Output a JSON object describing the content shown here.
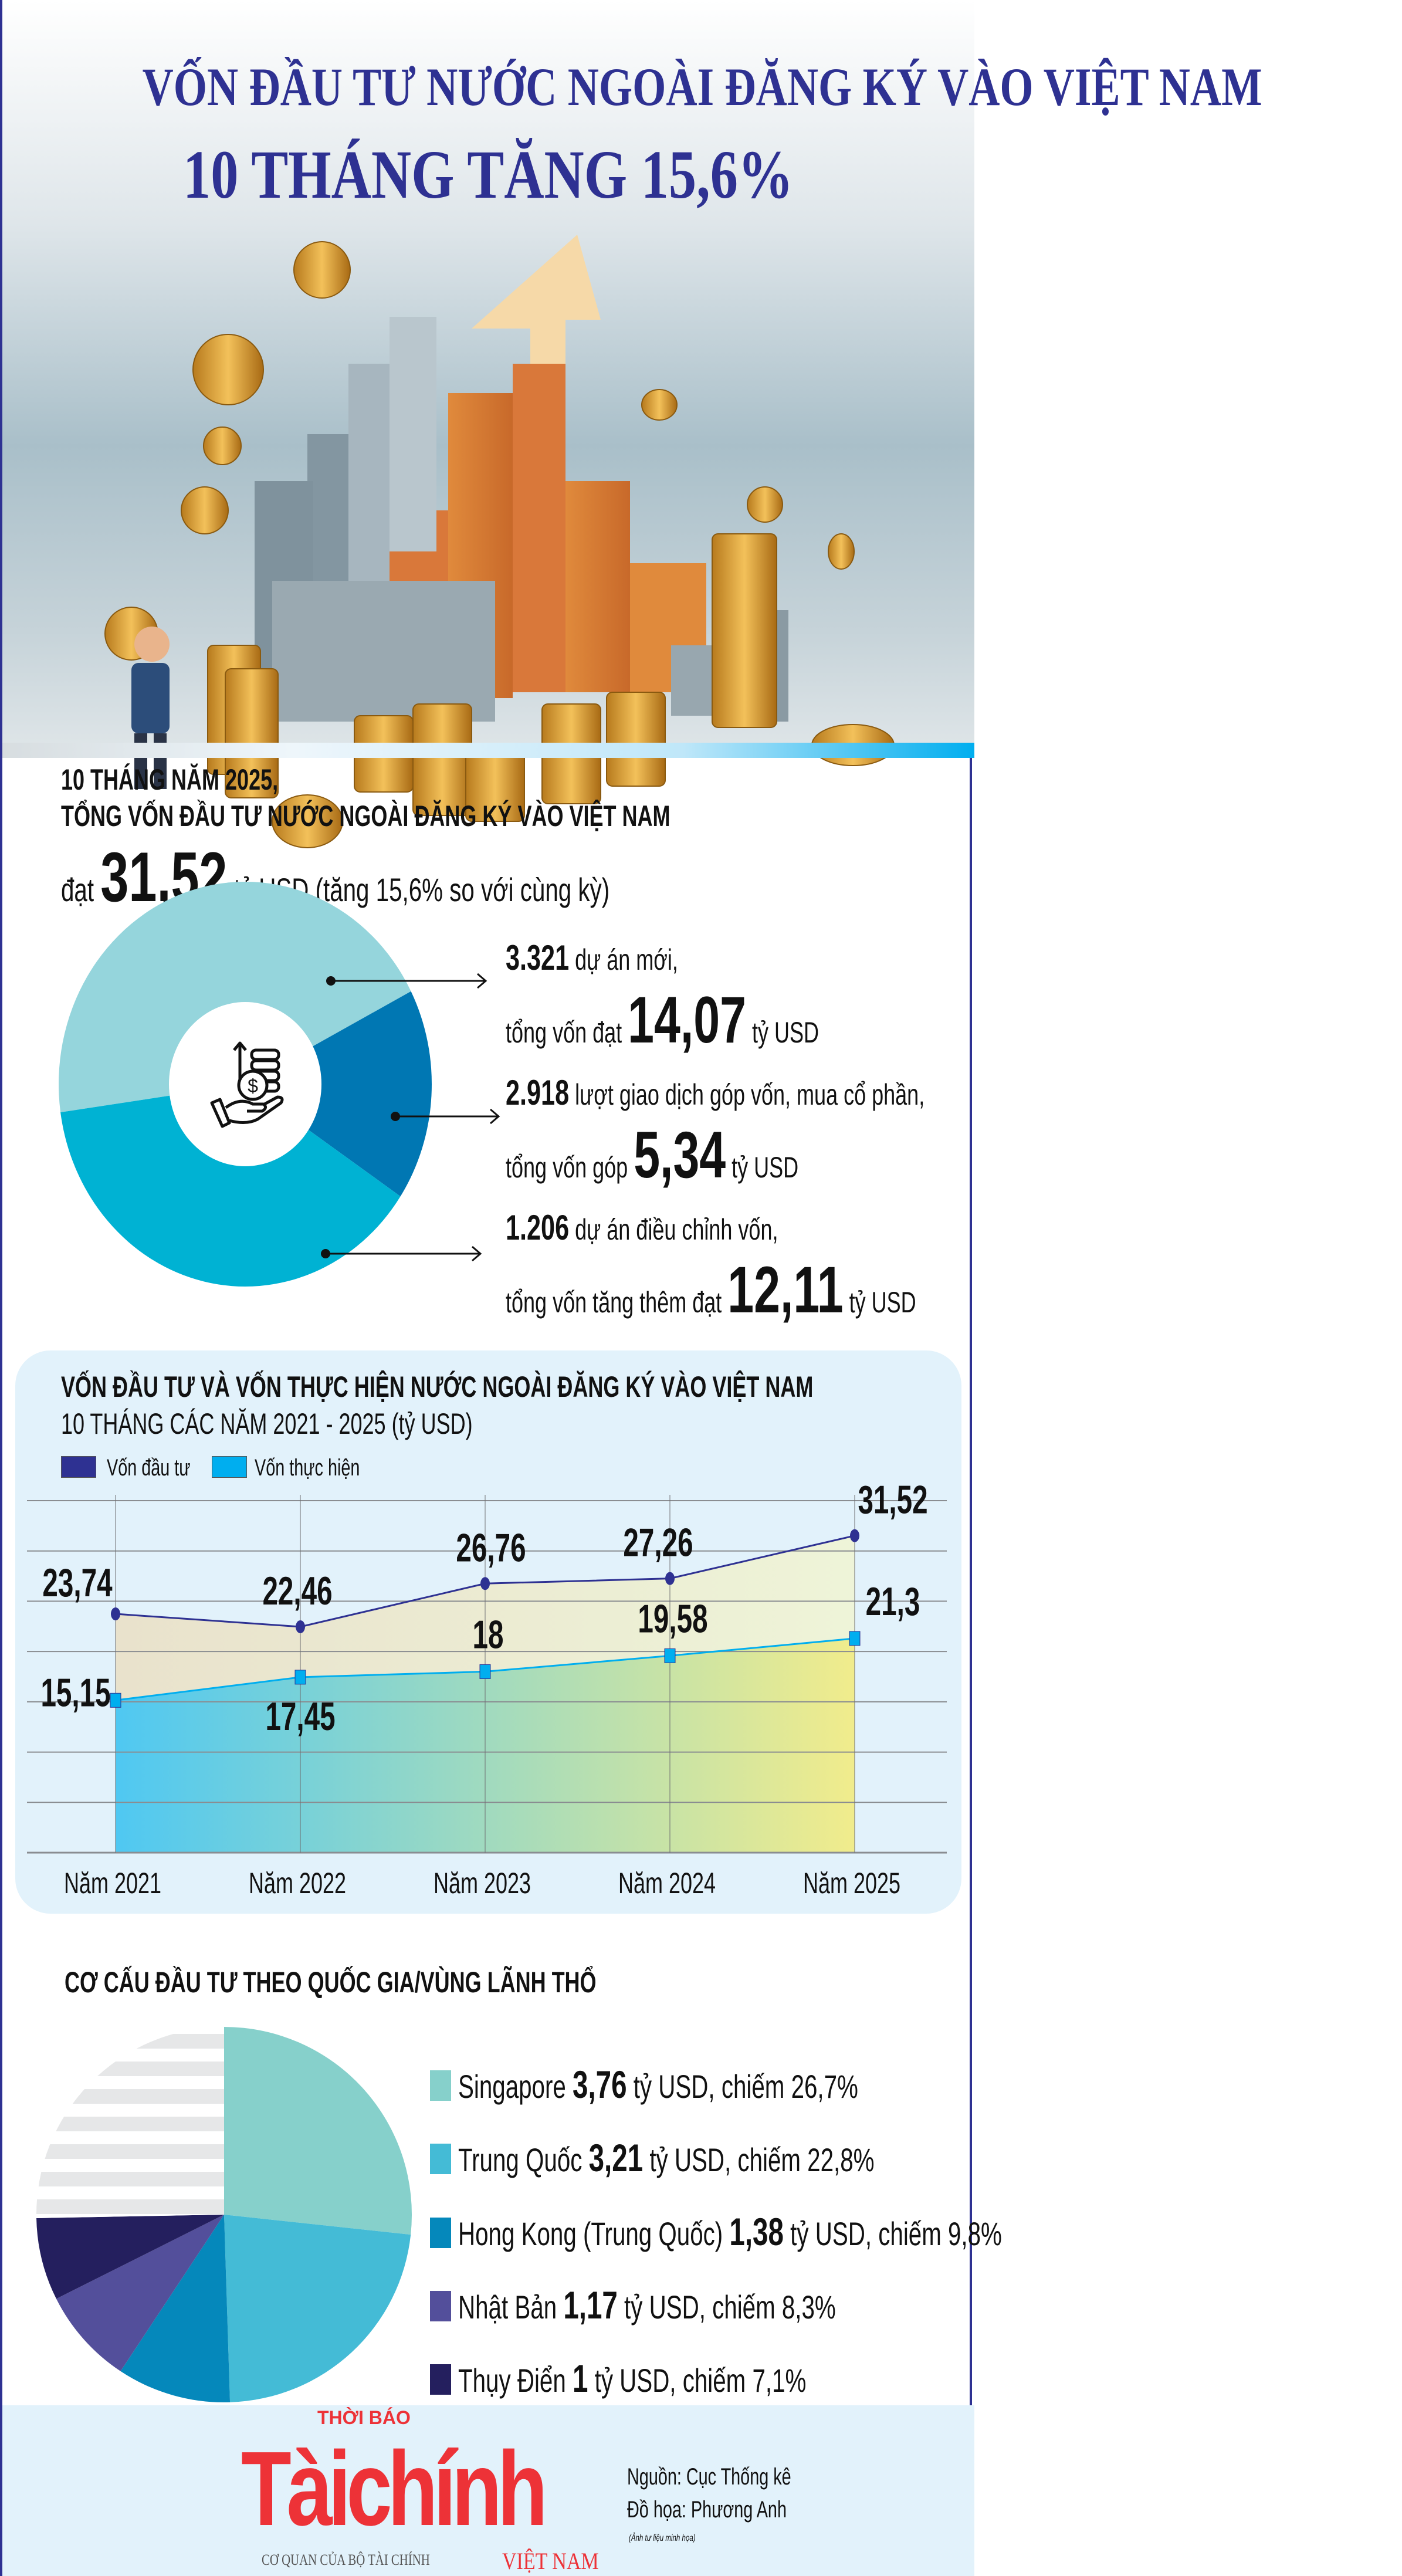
{
  "header": {
    "title_line1": "VỐN ĐẦU TƯ NƯỚC NGOÀI ĐĂNG KÝ VÀO VIỆT NAM",
    "title_line2": "10 THÁNG TĂNG 15,6%"
  },
  "summary": {
    "line1": "10 THÁNG NĂM 2025,",
    "line2": "TỔNG VỐN ĐẦU TƯ NƯỚC NGOÀI ĐĂNG KÝ VÀO VIỆT NAM",
    "prefix": "đạt",
    "value": "31,52",
    "suffix": "tỷ USD (tăng 15,6% so với cùng kỳ)"
  },
  "breakdown": {
    "items": [
      {
        "count": "3.321",
        "text1": "dự án mới,",
        "text2": "tổng vốn đạt",
        "value": "14,07",
        "unit": "tỷ USD",
        "color": "#95d5dc"
      },
      {
        "count": "2.918",
        "text1": "lượt giao dịch góp vốn, mua cổ phần,",
        "text2": "tổng vốn góp",
        "value": "5,34",
        "unit": "tỷ USD",
        "color": "#0077b3"
      },
      {
        "count": "1.206",
        "text1": "dự án điều chỉnh vốn,",
        "text2": "tổng vốn tăng thêm đạt",
        "value": "12,11",
        "unit": "tỷ USD",
        "color": "#00b2d3"
      }
    ],
    "center_icon": "hand-coins-dollar-icon"
  },
  "line_section": {
    "title_line1": "VỐN ĐẦU TƯ VÀ VỐN THỰC HIỆN NƯỚC NGOÀI ĐĂNG KÝ VÀO VIỆT NAM",
    "title_line2": "10 THÁNG CÁC NĂM 2021 - 2025 (tỷ USD)"
  },
  "pie_section": {
    "title": "CƠ CẤU ĐẦU TƯ THEO QUỐC GIA/VÙNG LÃNH THỔ",
    "legend": [
      {
        "name": "Singapore",
        "value": "3,76",
        "rest": "tỷ USD, chiếm 26,7%"
      },
      {
        "name": "Trung Quốc",
        "value": "3,21",
        "rest": "tỷ USD, chiếm 22,8%"
      },
      {
        "name": "Hong Kong (Trung Quốc)",
        "value": "1,38",
        "rest": "tỷ USD, chiếm 9,8%"
      },
      {
        "name": "Nhật Bản",
        "value": "1,17",
        "rest": "tỷ USD, chiếm 8,3%"
      },
      {
        "name": "Thụy Điển",
        "value": "1",
        "rest": "tỷ USD, chiếm 7,1%"
      }
    ]
  },
  "chart_data": [
    {
      "type": "pie",
      "values": [
        14.07,
        5.34,
        12.11
      ],
      "colors": [
        "#95d5dc",
        "#0077b3",
        "#00b2d3"
      ],
      "donut": true
    },
    {
      "type": "area",
      "title": "VỐN ĐẦU TƯ VÀ VỐN THỰC HIỆN NƯỚC NGOÀI ĐĂNG KÝ VÀO VIỆT NAM 10 THÁNG CÁC NĂM 2021 - 2025 (tỷ USD)",
      "categories": [
        "Năm 2021",
        "Năm 2022",
        "Năm 2023",
        "Năm 2024",
        "Năm 2025"
      ],
      "series": [
        {
          "name": "Vốn đầu tư",
          "values": [
            23.74,
            22.46,
            26.76,
            27.26,
            31.52
          ],
          "labels": [
            "23,74",
            "22,46",
            "26,76",
            "27,26",
            "31,52"
          ],
          "color": "#2e3192"
        },
        {
          "name": "Vốn thực hiện",
          "values": [
            15.15,
            17.45,
            18,
            19.58,
            21.3
          ],
          "labels": [
            "15,15",
            "17,45",
            "18",
            "19,58",
            "21,3"
          ],
          "color": "#00aeef"
        }
      ],
      "ylim": [
        0,
        35
      ],
      "grid": true,
      "legend": "top-left"
    },
    {
      "type": "pie",
      "categories": [
        "Singapore",
        "Trung Quốc",
        "Hong Kong (Trung Quốc)",
        "Nhật Bản",
        "Thụy Điển",
        ""
      ],
      "values": [
        26.7,
        22.8,
        9.8,
        8.3,
        7.1,
        25.3
      ],
      "colors": [
        "#86d0cb",
        "#44bbd6",
        "#0588bb",
        "#534f9b",
        "#241f5e",
        "#e6e7e8"
      ],
      "legend": "right"
    }
  ],
  "footer": {
    "logo_top": "THỜI BÁO",
    "logo_main": "Tàichính",
    "logo_sub": "CƠ QUAN CỦA BỘ TÀI CHÍNH",
    "logo_country": "VIỆT NAM",
    "source": "Nguồn: Cục Thống kê",
    "design": "Đồ họa: Phương Anh",
    "note": "(Ảnh tư liệu minh họa)"
  }
}
